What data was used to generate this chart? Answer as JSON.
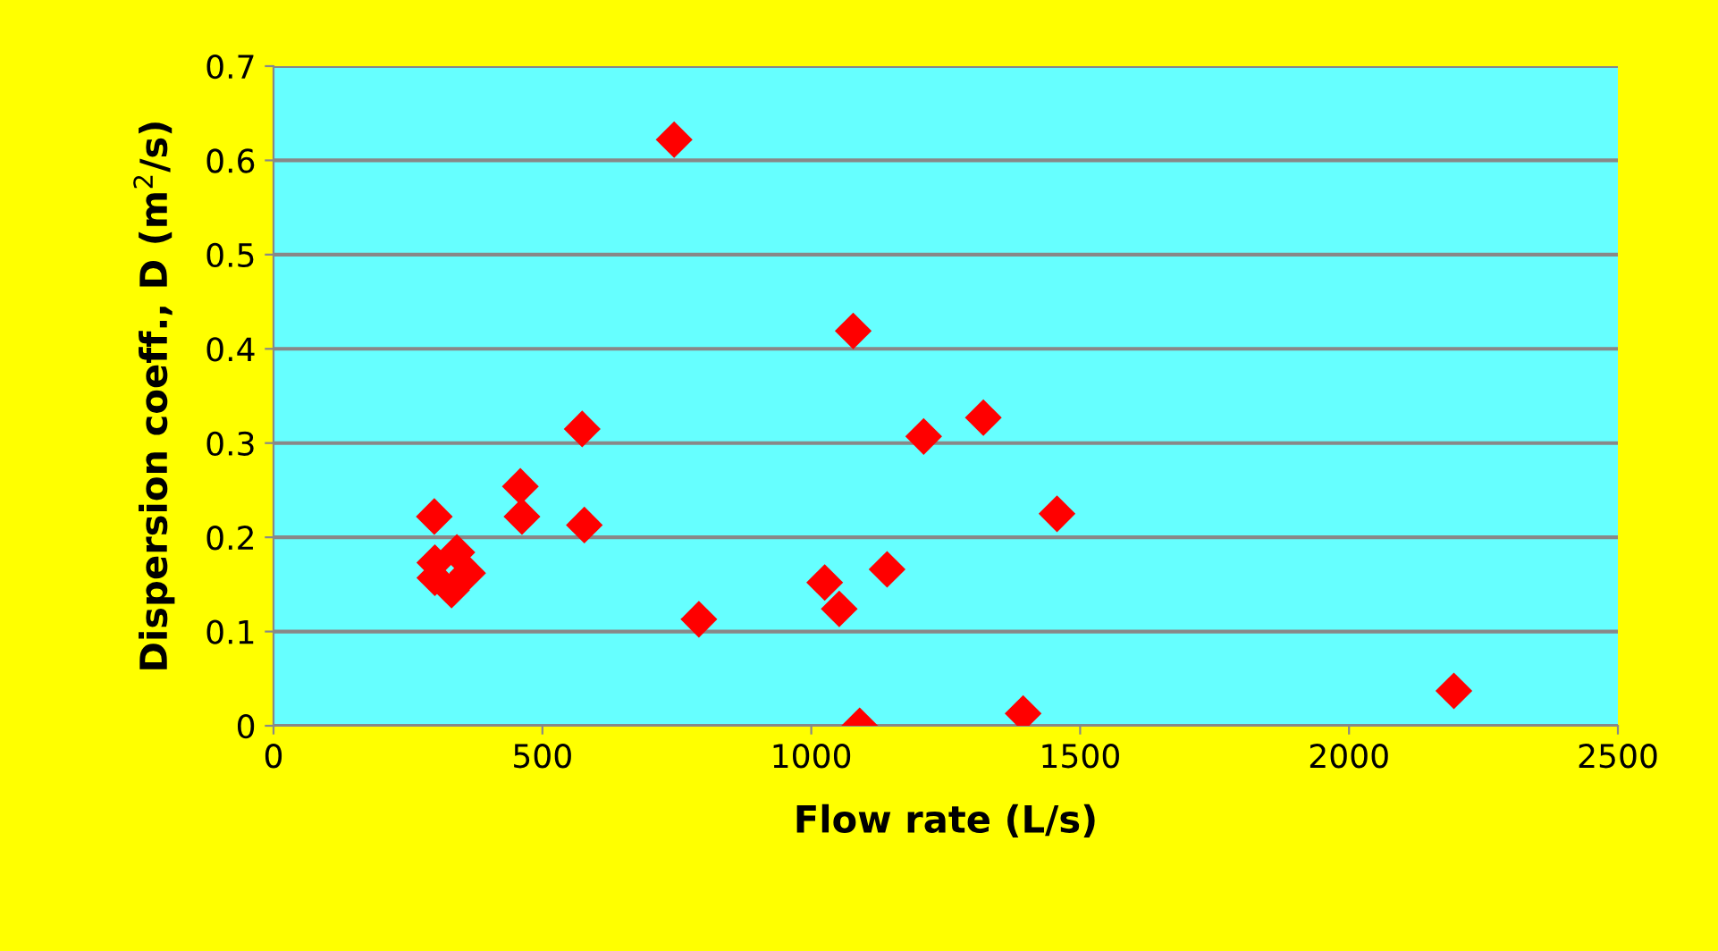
{
  "chart_data": {
    "type": "scatter",
    "xlabel": "Flow rate (L/s)",
    "ylabel": "Dispersion coeff., D (m$^{2}$/s)",
    "x": [
      745,
      299,
      459,
      462,
      574,
      578,
      791,
      1078,
      1209,
      1320,
      1457,
      2195,
      1394,
      1090,
      1141,
      1025,
      1052,
      300,
      300,
      341,
      361,
      331
    ],
    "series": [
      {
        "color": "#ff0000",
        "values": [
          0.622,
          0.222,
          0.254,
          0.222,
          0.315,
          0.213,
          0.113,
          0.419,
          0.307,
          0.327,
          0.225,
          0.037,
          0.013,
          0.0,
          0.166,
          0.152,
          0.124,
          0.173,
          0.157,
          0.184,
          0.162,
          0.144
        ]
      }
    ],
    "xlim": [
      0,
      2500
    ],
    "xticks": [
      0,
      500,
      1000,
      1500,
      2000,
      2500
    ],
    "ylim": [
      0,
      0.7
    ],
    "yticks": [
      0,
      0.1,
      0.2,
      0.3,
      0.4,
      0.5,
      0.6,
      0.7
    ],
    "grid": "y",
    "marker": "diamond"
  }
}
